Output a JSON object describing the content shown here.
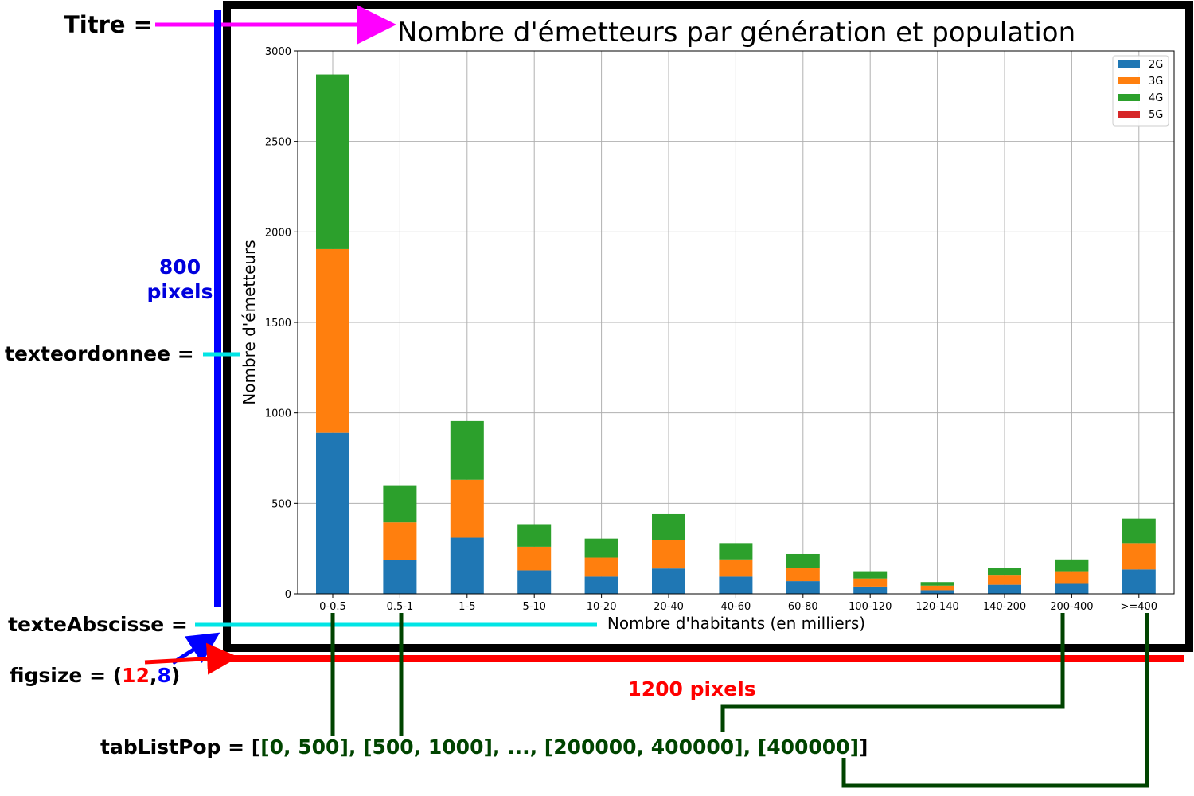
{
  "annotations": {
    "titre_label": "Titre =",
    "height_value": "800",
    "height_unit": "pixels",
    "ylabel_label": "texteordonnee =",
    "xlabel_label": "texteAbscisse =",
    "figsize_prefix": "figsize = (",
    "figsize_w": "12",
    "figsize_sep": ",",
    "figsize_h": "8",
    "figsize_suffix": ")",
    "width_label": "1200 pixels",
    "tablist_prefix": "tabListPop = [",
    "tablist_items": "[0, 500], [500, 1000], ..., [200000, 400000], [400000]",
    "tablist_suffix": "]",
    "colors": {
      "magenta": "#ff00ff",
      "blue": "#0000ff",
      "cyan": "#00e5e5",
      "red": "#ff0000",
      "dark_green": "#004400",
      "label_blue": "#0000dd"
    }
  },
  "chart_data": {
    "type": "bar",
    "stacked": true,
    "title": "Nombre d'émetteurs par génération et population",
    "xlabel": "Nombre d'habitants (en milliers)",
    "ylabel": "Nombre d'émetteurs",
    "categories": [
      "0-0.5",
      "0.5-1",
      "1-5",
      "5-10",
      "10-20",
      "20-40",
      "40-60",
      "60-80",
      "100-120",
      "120-140",
      "140-200",
      "200-400",
      ">=400"
    ],
    "series": [
      {
        "name": "2G",
        "color": "#1f77b4",
        "values": [
          890,
          185,
          310,
          130,
          95,
          140,
          95,
          70,
          40,
          20,
          50,
          55,
          135
        ]
      },
      {
        "name": "3G",
        "color": "#ff7f0e",
        "values": [
          1015,
          210,
          320,
          130,
          105,
          155,
          95,
          75,
          45,
          25,
          55,
          70,
          145
        ]
      },
      {
        "name": "4G",
        "color": "#2ca02c",
        "values": [
          965,
          205,
          325,
          125,
          105,
          145,
          90,
          75,
          40,
          20,
          40,
          65,
          135
        ]
      },
      {
        "name": "5G",
        "color": "#d62728",
        "values": [
          0,
          0,
          0,
          0,
          0,
          0,
          0,
          0,
          0,
          0,
          0,
          0,
          0
        ]
      }
    ],
    "yticks": [
      0,
      500,
      1000,
      1500,
      2000,
      2500,
      3000
    ],
    "ylim": [
      0,
      3000
    ],
    "grid": true,
    "legend_position": "top-right"
  }
}
